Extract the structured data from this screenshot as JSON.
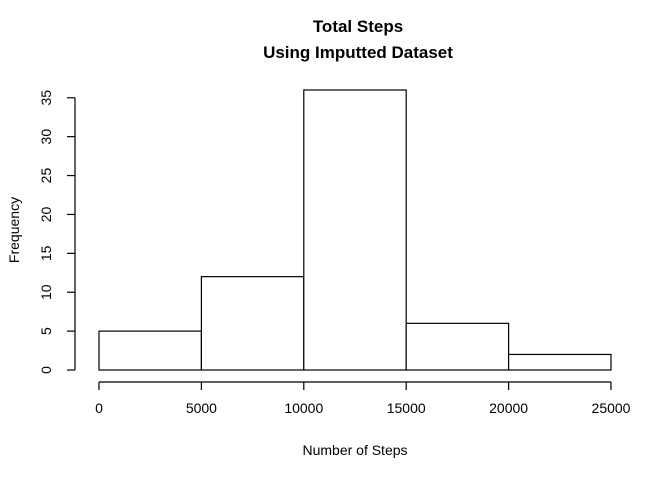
{
  "chart_data": {
    "type": "bar",
    "title": "Total Steps",
    "subtitle": "Using Imputted Dataset",
    "xlabel": "Number of Steps",
    "ylabel": "Frequency",
    "bins": [
      {
        "start": 0,
        "end": 5000,
        "count": 5
      },
      {
        "start": 5000,
        "end": 10000,
        "count": 12
      },
      {
        "start": 10000,
        "end": 15000,
        "count": 36
      },
      {
        "start": 15000,
        "end": 20000,
        "count": 6
      },
      {
        "start": 20000,
        "end": 25000,
        "count": 2
      }
    ],
    "xlim": [
      0,
      25000
    ],
    "ylim": [
      0,
      36
    ],
    "xticks": [
      0,
      5000,
      10000,
      15000,
      20000,
      25000
    ],
    "yticks": [
      0,
      5,
      10,
      15,
      20,
      25,
      30,
      35
    ],
    "grid": false,
    "colors": {
      "bar_fill": "#ffffff",
      "bar_stroke": "#000000",
      "axis": "#000000",
      "text": "#000000"
    }
  }
}
